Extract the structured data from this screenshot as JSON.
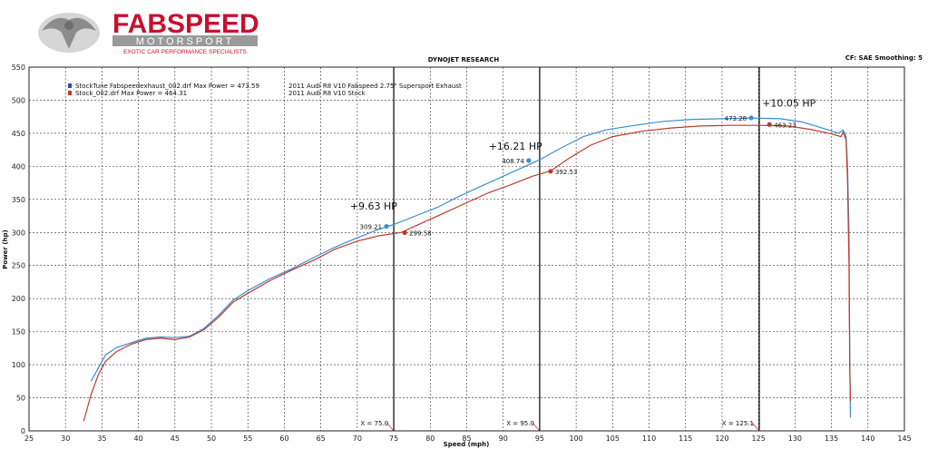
{
  "logo": {
    "brand": "FABSPEED",
    "sub": "MOTORSPORT",
    "tagline": "EXOTIC CAR PERFORMANCE SPECIALISTS",
    "brand_color": "#c8102e",
    "gray": "#9a9a9a"
  },
  "header": {
    "center": "DYNOJET RESEARCH",
    "right": "CF: SAE  Smoothing: 5"
  },
  "legend": {
    "entries": [
      {
        "file": "StockTune Fabspeedexhaust_002.drf Max Power = 473.59",
        "desc": "2011 Audi R8 V10 Fabspeed 2.75\" Supersport Exhaust",
        "color": "#3a8fd1",
        "swatch": "#1f4fb0"
      },
      {
        "file": "Stock_002.drf Max Power = 464.31",
        "desc": "2011 Audi R8 V10 Stock",
        "color": "#c0392b",
        "swatch": "#c0392b"
      }
    ]
  },
  "chart_data": {
    "type": "line",
    "xlabel": "Speed (mph)",
    "ylabel": "Power (hp)",
    "xlim": [
      25,
      145
    ],
    "ylim": [
      0,
      550
    ],
    "x_ticks": [
      25,
      30,
      35,
      40,
      45,
      50,
      55,
      60,
      65,
      70,
      75,
      80,
      85,
      90,
      95,
      100,
      105,
      110,
      115,
      120,
      125,
      130,
      135,
      140,
      145
    ],
    "y_ticks": [
      0,
      50,
      100,
      150,
      200,
      250,
      300,
      350,
      400,
      450,
      500,
      550
    ],
    "grid": true,
    "series": [
      {
        "name": "StockTune Fabspeedexhaust_002.drf",
        "color": "#3a8fd1",
        "points": [
          [
            33.5,
            75
          ],
          [
            34.5,
            95
          ],
          [
            35.5,
            115
          ],
          [
            37,
            126
          ],
          [
            39,
            133
          ],
          [
            41,
            140
          ],
          [
            43,
            142
          ],
          [
            45,
            141
          ],
          [
            47,
            143
          ],
          [
            49,
            155
          ],
          [
            51,
            175
          ],
          [
            53,
            198
          ],
          [
            55,
            212
          ],
          [
            58,
            230
          ],
          [
            61,
            245
          ],
          [
            64,
            262
          ],
          [
            67,
            278
          ],
          [
            70,
            292
          ],
          [
            73,
            305
          ],
          [
            75,
            312
          ],
          [
            78,
            325
          ],
          [
            81,
            338
          ],
          [
            84,
            355
          ],
          [
            87,
            370
          ],
          [
            90,
            385
          ],
          [
            93,
            400
          ],
          [
            95,
            410
          ],
          [
            98,
            428
          ],
          [
            101,
            445
          ],
          [
            104,
            455
          ],
          [
            108,
            462
          ],
          [
            112,
            468
          ],
          [
            116,
            471
          ],
          [
            120,
            472
          ],
          [
            124,
            473
          ],
          [
            128,
            472
          ],
          [
            131,
            467
          ],
          [
            134,
            457
          ],
          [
            136,
            450
          ],
          [
            136.6,
            455
          ],
          [
            137,
            445
          ],
          [
            137.2,
            400
          ],
          [
            137.4,
            300
          ],
          [
            137.5,
            120
          ],
          [
            137.6,
            20
          ]
        ]
      },
      {
        "name": "Stock_002.drf",
        "color": "#c0392b",
        "points": [
          [
            32.5,
            15
          ],
          [
            33.5,
            55
          ],
          [
            34.5,
            85
          ],
          [
            35.5,
            105
          ],
          [
            37,
            120
          ],
          [
            39,
            131
          ],
          [
            41,
            138
          ],
          [
            43,
            140
          ],
          [
            45,
            138
          ],
          [
            47,
            142
          ],
          [
            49,
            153
          ],
          [
            51,
            172
          ],
          [
            53,
            195
          ],
          [
            55,
            208
          ],
          [
            58,
            227
          ],
          [
            61,
            243
          ],
          [
            64,
            258
          ],
          [
            67,
            275
          ],
          [
            70,
            287
          ],
          [
            73,
            295
          ],
          [
            76,
            300
          ],
          [
            79,
            315
          ],
          [
            82,
            330
          ],
          [
            85,
            345
          ],
          [
            88,
            360
          ],
          [
            91,
            372
          ],
          [
            94,
            385
          ],
          [
            96.5,
            393
          ],
          [
            99,
            412
          ],
          [
            102,
            432
          ],
          [
            105,
            445
          ],
          [
            109,
            453
          ],
          [
            113,
            458
          ],
          [
            117,
            461
          ],
          [
            121,
            462
          ],
          [
            125,
            462
          ],
          [
            129,
            461
          ],
          [
            132,
            456
          ],
          [
            135,
            449
          ],
          [
            136.3,
            445
          ],
          [
            136.6,
            452
          ],
          [
            137,
            440
          ],
          [
            137.2,
            380
          ],
          [
            137.4,
            250
          ],
          [
            137.5,
            100
          ],
          [
            137.6,
            45
          ]
        ]
      }
    ],
    "vlines": [
      {
        "x": 75.0,
        "label": "X = 75.0"
      },
      {
        "x": 95.0,
        "label": "X = 95.0"
      },
      {
        "x": 125.1,
        "label": "X = 125.1"
      }
    ],
    "markers": [
      {
        "x": 74.0,
        "y": 309.21,
        "label": "309.21",
        "series": 0
      },
      {
        "x": 76.5,
        "y": 299.58,
        "label": "299.58",
        "series": 1
      },
      {
        "x": 93.5,
        "y": 408.74,
        "label": "408.74",
        "series": 0
      },
      {
        "x": 96.5,
        "y": 392.53,
        "label": "392.53",
        "series": 1
      },
      {
        "x": 124.0,
        "y": 473.28,
        "label": "473.28",
        "series": 0
      },
      {
        "x": 126.5,
        "y": 463.23,
        "label": "463.23",
        "series": 1
      }
    ],
    "annotations": [
      {
        "x": 69,
        "y": 335,
        "text": "+9.63 HP"
      },
      {
        "x": 88,
        "y": 425,
        "text": "+16.21 HP"
      },
      {
        "x": 125.5,
        "y": 490,
        "text": "+10.05 HP"
      }
    ]
  }
}
